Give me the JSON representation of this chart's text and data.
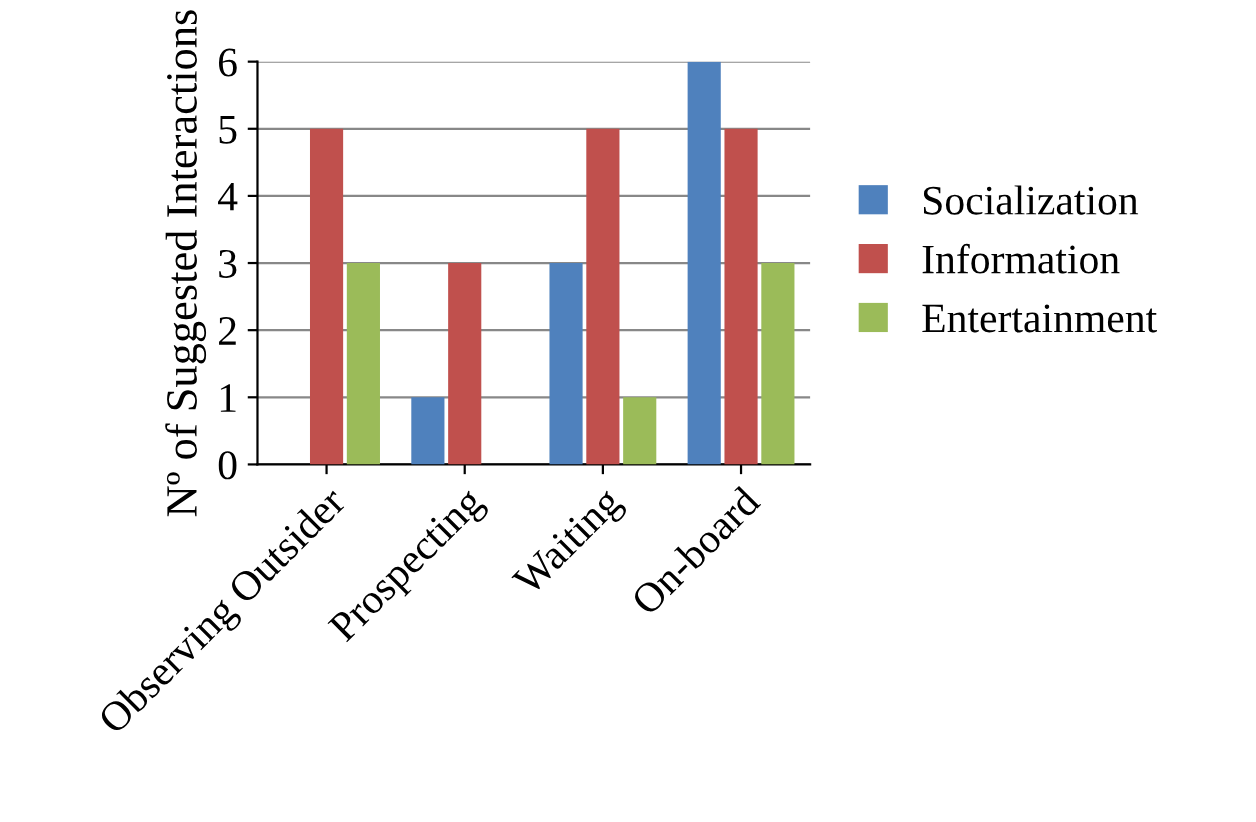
{
  "chart_data": {
    "type": "bar",
    "ylabel": "Nº of Suggested Interactions",
    "categories": [
      "Observing Outsider",
      "Prospecting",
      "Waiting",
      "On-board"
    ],
    "series": [
      {
        "name": "Socialization",
        "color": "#4f81bd",
        "values": [
          0,
          1,
          3,
          6
        ]
      },
      {
        "name": "Information",
        "color": "#c0504d",
        "values": [
          5,
          3,
          5,
          5
        ]
      },
      {
        "name": "Entertainment",
        "color": "#9bbb59",
        "values": [
          3,
          0,
          1,
          3
        ]
      }
    ],
    "ylim": [
      0,
      6
    ],
    "yticks": [
      0,
      1,
      2,
      3,
      4,
      5,
      6
    ],
    "grid": "y",
    "legend": "right"
  }
}
